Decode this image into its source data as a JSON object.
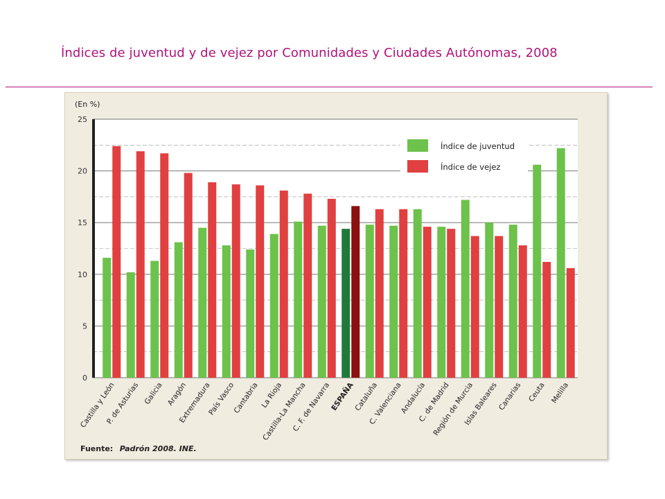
{
  "slide": {
    "title": "Índices de juventud y de vejez por Comunidades y Ciudades Autónomas, 2008"
  },
  "colors": {
    "title": "#b0127a",
    "juventud": "#6cc24a",
    "vejez": "#e04040",
    "espana_juventud": "#1f7a3a",
    "espana_vejez": "#8b1010",
    "panel": "#f1ece0",
    "plot": "#ffffff",
    "axis": "#222222",
    "grid": "#555555"
  },
  "chart_data": {
    "type": "bar",
    "title": "Índices de juventud y de vejez por Comunidades y Ciudades Autónomas, 2008",
    "ylabel": "(En %)",
    "xlabel": "",
    "ylim": [
      0,
      25
    ],
    "yticks": [
      "0",
      "5",
      "10",
      "15",
      "20",
      "25"
    ],
    "grid": true,
    "legend_position": "top-right",
    "highlight_category": "ESPAÑA",
    "source_prefix": "Fuente:",
    "source_text": "Padrón 2008. INE.",
    "categories": [
      "Castilla y León",
      "P. de Asturias",
      "Galicia",
      "Aragón",
      "Extremadura",
      "País Vasco",
      "Cantabria",
      "La Rioja",
      "Castilla-La Mancha",
      "C. F. de Navarra",
      "ESPAÑA",
      "Cataluña",
      "C. Valenciana",
      "Andalucía",
      "C. de Madrid",
      "Región de Murcia",
      "Islas Baleares",
      "Canarias",
      "Ceuta",
      "Melilla"
    ],
    "series": [
      {
        "name": "Índice de juventud",
        "values": [
          11.6,
          10.2,
          11.3,
          13.1,
          14.5,
          12.8,
          12.4,
          13.9,
          15.1,
          14.7,
          14.4,
          14.8,
          14.7,
          16.3,
          14.6,
          17.2,
          15.0,
          14.8,
          20.6,
          22.2
        ]
      },
      {
        "name": "Índice de vejez",
        "values": [
          22.4,
          21.9,
          21.7,
          19.8,
          18.9,
          18.7,
          18.6,
          18.1,
          17.8,
          17.3,
          16.6,
          16.3,
          16.3,
          14.6,
          14.4,
          13.7,
          13.7,
          12.8,
          11.2,
          10.6
        ]
      }
    ]
  }
}
